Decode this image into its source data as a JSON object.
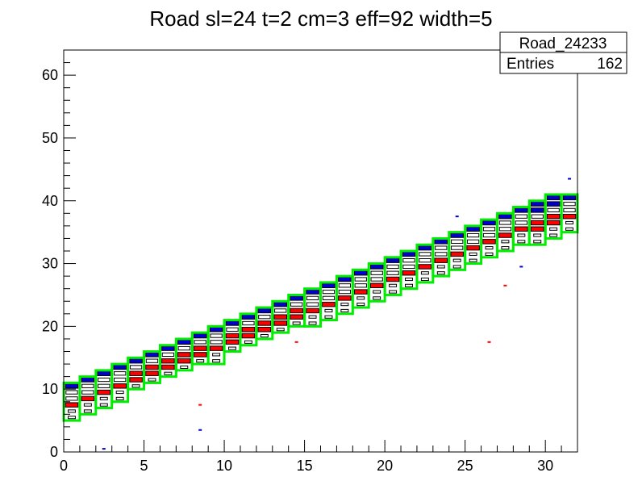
{
  "chart_data": {
    "type": "heatmap",
    "title": "Road sl=24 t=2 cm=3 eff=92 width=5",
    "xlabel": "",
    "ylabel": "",
    "xlim": [
      0,
      32
    ],
    "ylim": [
      0,
      64
    ],
    "x_ticks": [
      "0",
      "5",
      "10",
      "15",
      "20",
      "25",
      "30"
    ],
    "y_ticks": [
      "0",
      "10",
      "20",
      "30",
      "40",
      "50",
      "60"
    ],
    "grid": false,
    "stats_box": {
      "name": "Road_24233",
      "entries_label": "Entries",
      "entries_value": "162"
    },
    "road_color": "#00ee00",
    "red_color": "#ff0000",
    "blue_color": "#0000cc",
    "road": [
      {
        "x": 0,
        "y_low": 5,
        "y_high": 11
      },
      {
        "x": 1,
        "y_low": 6,
        "y_high": 12
      },
      {
        "x": 2,
        "y_low": 7,
        "y_high": 13
      },
      {
        "x": 3,
        "y_low": 8,
        "y_high": 14
      },
      {
        "x": 4,
        "y_low": 10,
        "y_high": 15
      },
      {
        "x": 5,
        "y_low": 11,
        "y_high": 16
      },
      {
        "x": 6,
        "y_low": 12,
        "y_high": 17
      },
      {
        "x": 7,
        "y_low": 13,
        "y_high": 18
      },
      {
        "x": 8,
        "y_low": 14,
        "y_high": 19
      },
      {
        "x": 9,
        "y_low": 14,
        "y_high": 20
      },
      {
        "x": 10,
        "y_low": 16,
        "y_high": 21
      },
      {
        "x": 11,
        "y_low": 17,
        "y_high": 22
      },
      {
        "x": 12,
        "y_low": 18,
        "y_high": 23
      },
      {
        "x": 13,
        "y_low": 19,
        "y_high": 24
      },
      {
        "x": 14,
        "y_low": 20,
        "y_high": 25
      },
      {
        "x": 15,
        "y_low": 20,
        "y_high": 26
      },
      {
        "x": 16,
        "y_low": 21,
        "y_high": 27
      },
      {
        "x": 17,
        "y_low": 22,
        "y_high": 28
      },
      {
        "x": 18,
        "y_low": 23,
        "y_high": 29
      },
      {
        "x": 19,
        "y_low": 24,
        "y_high": 30
      },
      {
        "x": 20,
        "y_low": 25,
        "y_high": 31
      },
      {
        "x": 21,
        "y_low": 26,
        "y_high": 32
      },
      {
        "x": 22,
        "y_low": 27,
        "y_high": 33
      },
      {
        "x": 23,
        "y_low": 28,
        "y_high": 34
      },
      {
        "x": 24,
        "y_low": 29,
        "y_high": 35
      },
      {
        "x": 25,
        "y_low": 30,
        "y_high": 36
      },
      {
        "x": 26,
        "y_low": 31,
        "y_high": 37
      },
      {
        "x": 27,
        "y_low": 32,
        "y_high": 38
      },
      {
        "x": 28,
        "y_low": 33,
        "y_high": 39
      },
      {
        "x": 29,
        "y_low": 33,
        "y_high": 40
      },
      {
        "x": 30,
        "y_low": 34,
        "y_high": 41
      },
      {
        "x": 31,
        "y_low": 35,
        "y_high": 41
      }
    ],
    "outliers": [
      {
        "x": 2,
        "y": 0,
        "color": "blue"
      },
      {
        "x": 8,
        "y": 3,
        "color": "blue"
      },
      {
        "x": 8,
        "y": 7,
        "color": "red"
      },
      {
        "x": 14,
        "y": 17,
        "color": "red"
      },
      {
        "x": 26,
        "y": 17,
        "color": "red"
      },
      {
        "x": 27,
        "y": 26,
        "color": "red"
      },
      {
        "x": 28,
        "y": 29,
        "color": "blue"
      },
      {
        "x": 24,
        "y": 37,
        "color": "blue"
      },
      {
        "x": 31,
        "y": 43,
        "color": "blue"
      }
    ]
  }
}
